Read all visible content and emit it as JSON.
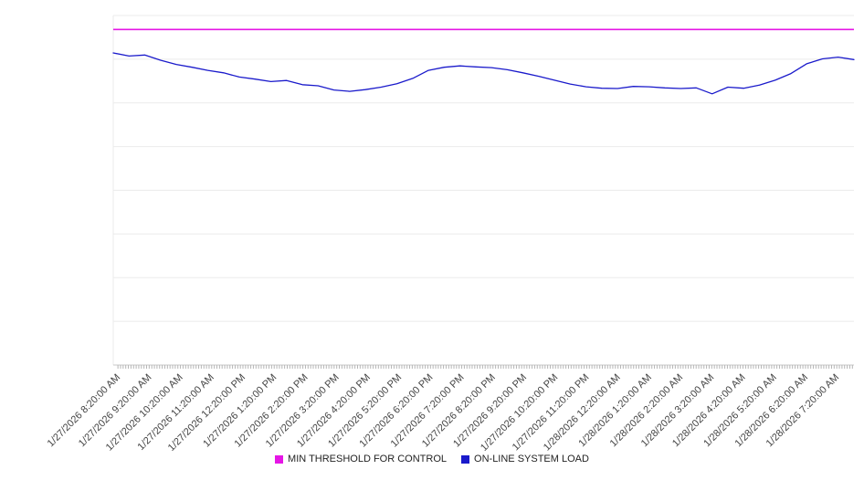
{
  "chart_data": {
    "type": "line",
    "title": "",
    "xlabel": "",
    "ylabel": "",
    "ylim": [
      0,
      100
    ],
    "grid_step": 12.5,
    "grid": true,
    "legend_position": "bottom",
    "x_labels": [
      "1/27/2026 8:20:00 AM",
      "1/27/2026 9:20:00 AM",
      "1/27/2026 10:20:00 AM",
      "1/27/2026 11:20:00 AM",
      "1/27/2026 12:20:00 PM",
      "1/27/2026 1:20:00 PM",
      "1/27/2026 2:20:00 PM",
      "1/27/2026 3:20:00 PM",
      "1/27/2026 4:20:00 PM",
      "1/27/2026 5:20:00 PM",
      "1/27/2026 6:20:00 PM",
      "1/27/2026 7:20:00 PM",
      "1/27/2026 8:20:00 PM",
      "1/27/2026 9:20:00 PM",
      "1/27/2026 10:20:00 PM",
      "1/27/2026 11:20:00 PM",
      "1/28/2026 12:20:00 AM",
      "1/28/2026 1:20:00 AM",
      "1/28/2026 2:20:00 AM",
      "1/28/2026 3:20:00 AM",
      "1/28/2026 4:20:00 AM",
      "1/28/2026 5:20:00 AM",
      "1/28/2026 6:20:00 AM",
      "1/28/2026 7:20:00 AM"
    ],
    "series": [
      {
        "name": "MIN THRESHOLD FOR CONTROL",
        "color": "#e516e5",
        "kind": "constant",
        "value": 96
      },
      {
        "name": "ON-LINE SYSTEM LOAD",
        "color": "#1a1acb",
        "kind": "line",
        "points_per_hour": 2,
        "values": [
          89.3,
          88.4,
          88.7,
          87.2,
          86.0,
          85.2,
          84.3,
          83.6,
          82.4,
          81.8,
          81.1,
          81.4,
          80.2,
          79.9,
          78.7,
          78.3,
          78.8,
          79.5,
          80.5,
          82.0,
          84.3,
          85.2,
          85.6,
          85.3,
          85.1,
          84.5,
          83.6,
          82.6,
          81.5,
          80.4,
          79.6,
          79.2,
          79.1,
          79.7,
          79.6,
          79.3,
          79.1,
          79.3,
          77.6,
          79.5,
          79.2,
          80.1,
          81.5,
          83.4,
          86.2,
          87.6,
          88.1,
          87.4
        ]
      }
    ],
    "colors": {
      "gridline": "#ebebeb",
      "axis": "#c8c8c8",
      "tick": "#b5b5b5",
      "label_text": "#444444",
      "background": "#ffffff"
    }
  }
}
